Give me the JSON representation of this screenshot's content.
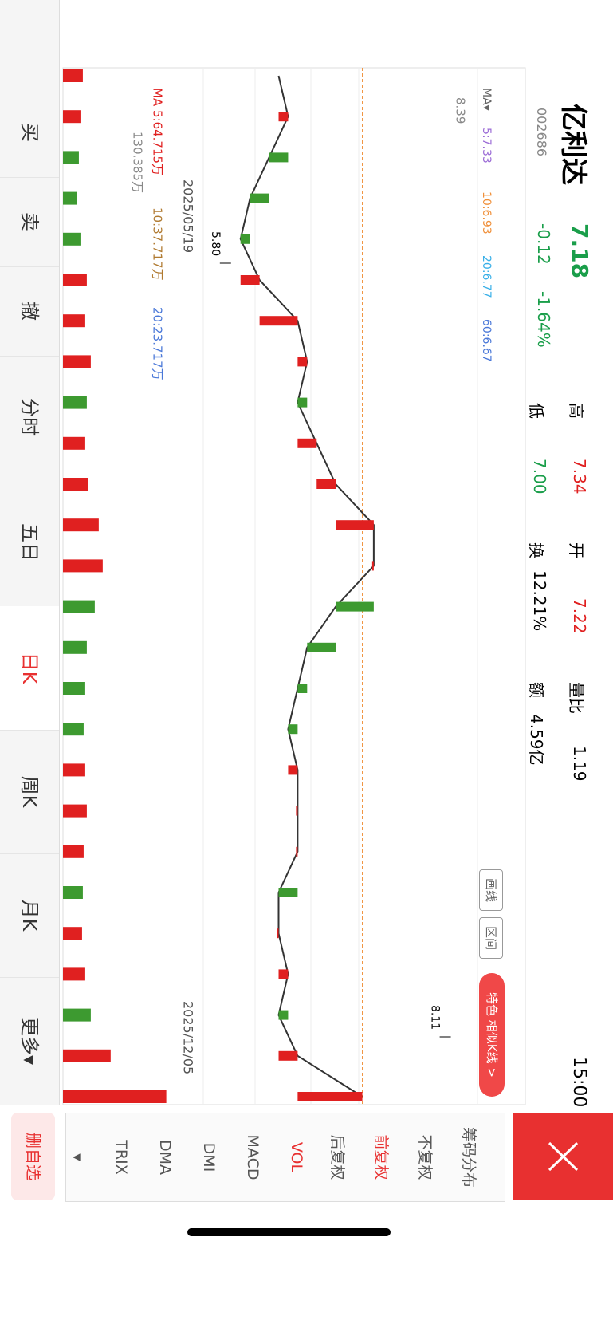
{
  "header": {
    "name": "亿利达",
    "code": "002686",
    "price": "7.18",
    "change": "-0.12",
    "change_pct": "-1.64%",
    "high_label": "高",
    "high": "7.34",
    "low_label": "低",
    "low": "7.00",
    "open_label": "开",
    "open": "7.22",
    "turnover_label": "换",
    "turnover": "12.21%",
    "vol_ratio_label": "量比",
    "vol_ratio": "1.19",
    "amount_label": "额",
    "amount": "4.59亿",
    "time": "15:00"
  },
  "chart_data": {
    "type": "line",
    "ma_label": "MA▾",
    "ma": [
      "5:7.33",
      "10:6.93",
      "20:6.77",
      "60:6.67"
    ],
    "ylim": [
      5.5,
      8.39
    ],
    "yticks": [
      8.39
    ],
    "x_labels": [
      "2025/05/19",
      "2025/12/05"
    ],
    "values": [
      6.3,
      6.4,
      6.2,
      6.0,
      5.9,
      6.1,
      6.5,
      6.6,
      6.5,
      6.7,
      6.9,
      7.3,
      7.3,
      6.9,
      6.6,
      6.5,
      6.4,
      6.5,
      6.5,
      6.5,
      6.3,
      6.3,
      6.4,
      6.3,
      6.5,
      7.18
    ],
    "annotations": [
      {
        "value": 8.11,
        "label": "8.11"
      },
      {
        "value": 5.8,
        "label": "5.80"
      }
    ],
    "volume_ma": [
      "MA 5:64.715万",
      "10:37.717万",
      "20:23.717万"
    ],
    "volume_max": "130.385万",
    "vlim": [
      0,
      130.385
    ],
    "volumes": [
      25,
      22,
      20,
      18,
      22,
      30,
      28,
      35,
      30,
      28,
      32,
      45,
      50,
      40,
      30,
      28,
      26,
      28,
      30,
      26,
      25,
      24,
      28,
      35,
      60,
      130
    ]
  },
  "tools": {
    "draw": "画线",
    "range": "区间",
    "similar": "特色 相似K线 >"
  },
  "side": [
    "筹码分布",
    "不复权",
    "前复权",
    "后复权",
    "VOL",
    "MACD",
    "DMI",
    "DMA",
    "TRIX",
    "▾"
  ],
  "unfollow": "删自选",
  "tabs": [
    "买",
    "卖",
    "撤",
    "分时",
    "五日",
    "日K",
    "周K",
    "月K",
    "更多▾"
  ]
}
